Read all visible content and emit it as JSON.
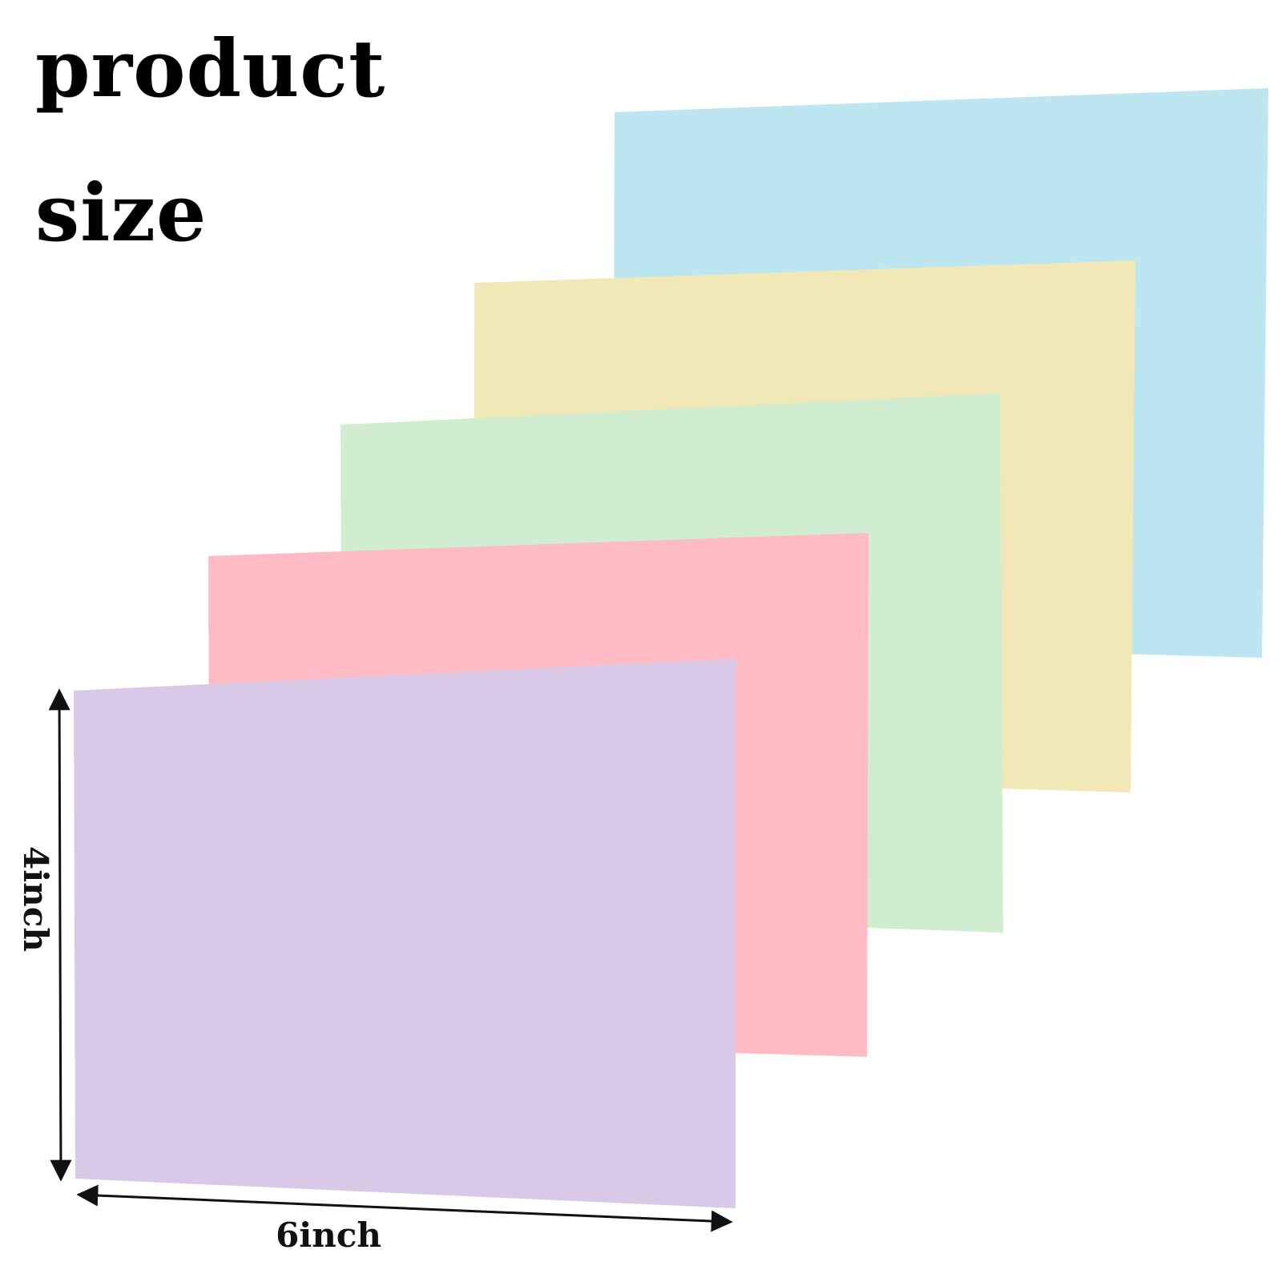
{
  "heading": {
    "line1": "product",
    "line2": "size"
  },
  "cards": [
    {
      "name": "blue",
      "color": "#BDE6F1"
    },
    {
      "name": "yellow",
      "color": "#F2E8B7"
    },
    {
      "name": "green",
      "color": "#D1EDCF"
    },
    {
      "name": "pink",
      "color": "#FFBBC4"
    },
    {
      "name": "purple",
      "color": "#DAC9E6"
    }
  ],
  "dimensions": {
    "height_label": "4inch",
    "width_label": "6inch"
  }
}
